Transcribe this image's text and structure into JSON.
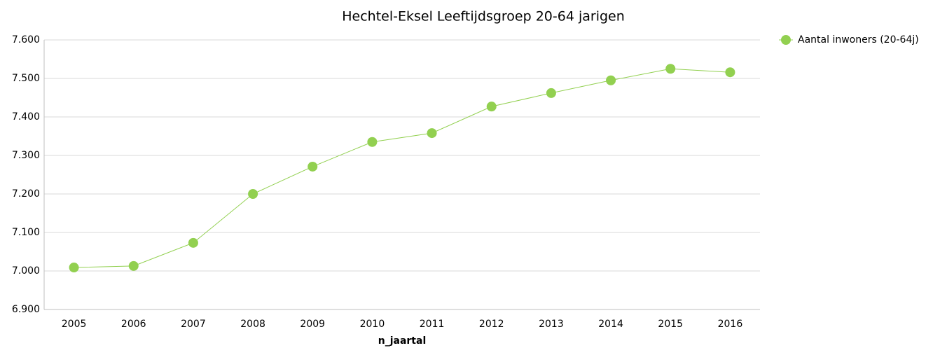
{
  "chart_data": {
    "type": "line",
    "title": "Hechtel-Eksel  Leeftijdsgroep 20-64 jarigen",
    "x_label": "n_jaartal",
    "categories": [
      "2005",
      "2006",
      "2007",
      "2008",
      "2009",
      "2010",
      "2011",
      "2012",
      "2013",
      "2014",
      "2015",
      "2016"
    ],
    "series": [
      {
        "name": "Aantal inwoners  (20-64j)",
        "color": "#92d050",
        "values": [
          7009,
          7013,
          7073,
          7200,
          7271,
          7335,
          7358,
          7427,
          7462,
          7495,
          7525,
          7516
        ]
      }
    ],
    "ylim": [
      6900,
      7600
    ],
    "yticks": [
      {
        "value": 6900,
        "label": "6.900"
      },
      {
        "value": 7000,
        "label": "7.000"
      },
      {
        "value": 7100,
        "label": "7.100"
      },
      {
        "value": 7200,
        "label": "7.200"
      },
      {
        "value": 7300,
        "label": "7.300"
      },
      {
        "value": 7400,
        "label": "7.400"
      },
      {
        "value": 7500,
        "label": "7.500"
      },
      {
        "value": 7600,
        "label": "7.600"
      }
    ],
    "grid": true,
    "legend": "top-right"
  }
}
